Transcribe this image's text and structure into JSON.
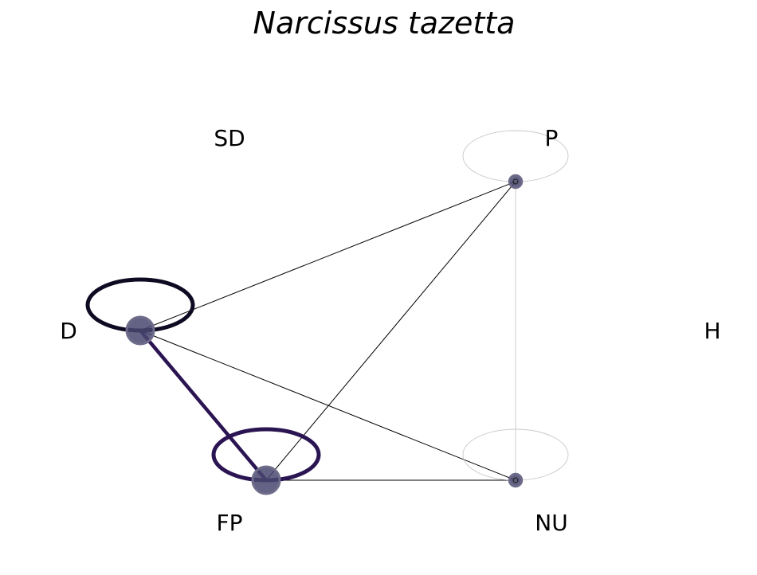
{
  "title": "Narcissus tazetta",
  "nodes": [
    {
      "id": "SD",
      "label": "SD",
      "present": false
    },
    {
      "id": "P",
      "label": "P",
      "present": true
    },
    {
      "id": "D",
      "label": "D",
      "present": true
    },
    {
      "id": "H",
      "label": "H",
      "present": false
    },
    {
      "id": "FP",
      "label": "FP",
      "present": true
    },
    {
      "id": "NU",
      "label": "NU",
      "present": true
    }
  ],
  "edges": [
    {
      "source": "D",
      "target": "FP",
      "weight": "strong",
      "color": "#2a1452"
    },
    {
      "source": "D",
      "target": "P",
      "weight": "thin",
      "color": "#000000"
    },
    {
      "source": "D",
      "target": "NU",
      "weight": "thin",
      "color": "#000000"
    },
    {
      "source": "FP",
      "target": "P",
      "weight": "thin",
      "color": "#000000"
    },
    {
      "source": "FP",
      "target": "NU",
      "weight": "thin",
      "color": "#000000"
    },
    {
      "source": "P",
      "target": "NU",
      "weight": "faint",
      "color": "#cccccc"
    }
  ],
  "self_loops": [
    {
      "node": "D",
      "weight": "strong",
      "color": "#0d0a22"
    },
    {
      "node": "FP",
      "weight": "strong",
      "color": "#2a1452"
    },
    {
      "node": "P",
      "weight": "faint",
      "color": "#c8c8c8"
    },
    {
      "node": "NU",
      "weight": "faint",
      "color": "#c8c8c8"
    }
  ],
  "colors": {
    "node_fill": "#4a4870",
    "node_stroke": "#6e6c8a"
  }
}
